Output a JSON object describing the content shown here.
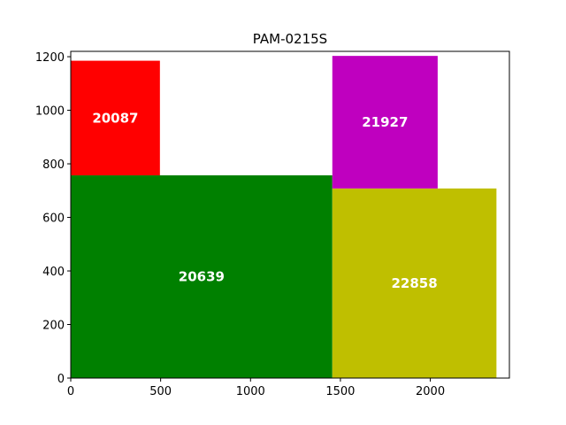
{
  "chart_data": {
    "type": "treemap-rectangles",
    "title": "PAM-0215S",
    "xlabel": "",
    "ylabel": "",
    "xlim": [
      0,
      2440
    ],
    "ylim": [
      0,
      1220
    ],
    "xticks": [
      0,
      500,
      1000,
      1500,
      2000
    ],
    "yticks": [
      0,
      200,
      400,
      600,
      800,
      1000,
      1200
    ],
    "grid": false,
    "rectangles": [
      {
        "label": "20639",
        "x": 0,
        "y": 0,
        "width": 1455,
        "height": 757,
        "color": "#008000"
      },
      {
        "label": "20087",
        "x": 0,
        "y": 757,
        "width": 496,
        "height": 428,
        "color": "#ff0000"
      },
      {
        "label": "22858",
        "x": 1455,
        "y": 0,
        "width": 913,
        "height": 708,
        "color": "#bfbf00"
      },
      {
        "label": "21927",
        "x": 1455,
        "y": 708,
        "width": 586,
        "height": 495,
        "color": "#bf00bf"
      }
    ]
  }
}
